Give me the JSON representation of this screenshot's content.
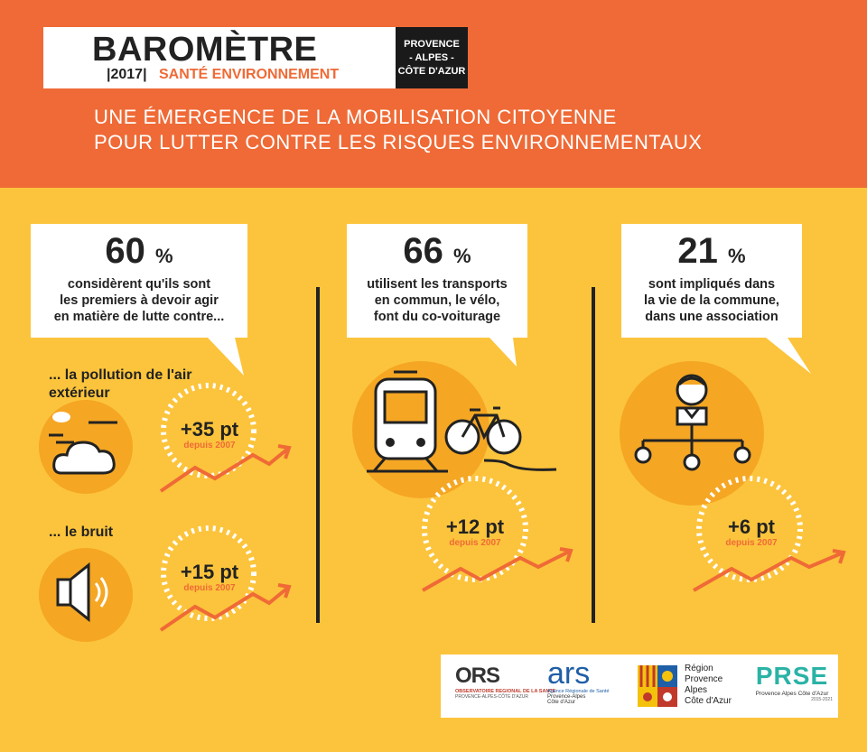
{
  "header": {
    "title": "BAROMÈTRE",
    "year": "|2017|",
    "subtitle": "SANTÉ ENVIRONNEMENT",
    "region": [
      "PROVENCE",
      "- ALPES -",
      "CÔTE D'AZUR"
    ],
    "headline_1": "UNE ÉMERGENCE DE LA MOBILISATION CITOYENNE",
    "headline_2": "POUR LUTTER CONTRE LES RISQUES ENVIRONNEMENTAUX"
  },
  "stats": [
    {
      "value": "60",
      "unit": "%",
      "lines": [
        "considèrent qu'ils sont",
        "les premiers à devoir agir",
        "en matière de lutte contre..."
      ],
      "items": [
        {
          "label_1": "... la pollution de l'air",
          "label_2": "extérieur",
          "gain": "+35 pt",
          "since": "depuis 2007",
          "icon": "cloud-icon"
        },
        {
          "label_1": "... le bruit",
          "label_2": "",
          "gain": "+15 pt",
          "since": "depuis 2007",
          "icon": "speaker-icon"
        }
      ]
    },
    {
      "value": "66",
      "unit": "%",
      "lines": [
        "utilisent les transports",
        "en commun, le vélo,",
        "font du co-voiturage"
      ],
      "gain": "+12 pt",
      "since": "depuis 2007",
      "icon": "train-bike-icon"
    },
    {
      "value": "21",
      "unit": "%",
      "lines": [
        "sont impliqués dans",
        "la vie de la commune,",
        "dans une association"
      ],
      "gain": "+6 pt",
      "since": "depuis 2007",
      "icon": "community-icon"
    }
  ],
  "logos": {
    "ors": "ORS",
    "ors_line_1": "OBSERVATOIRE REGIONAL DE LA SANTE",
    "ors_line_2": "PROVENCE-ALPES-CÔTE D'AZUR",
    "ars": "ars",
    "ars_line_1": "Agence Régionale de Santé",
    "ars_line_2": "Provence-Alpes",
    "ars_line_3": "Côte d'Azur",
    "region": [
      "Région",
      "Provence",
      "Alpes",
      "Côte d'Azur"
    ],
    "prse": "PRSE",
    "prse_line_1": "Provence Alpes Côte d'Azur",
    "prse_line_2": "2015-2021"
  },
  "colors": {
    "orange": "#ef6a36",
    "yellow": "#fcc43c",
    "dark_orange": "#f5a623",
    "black": "#222222"
  }
}
